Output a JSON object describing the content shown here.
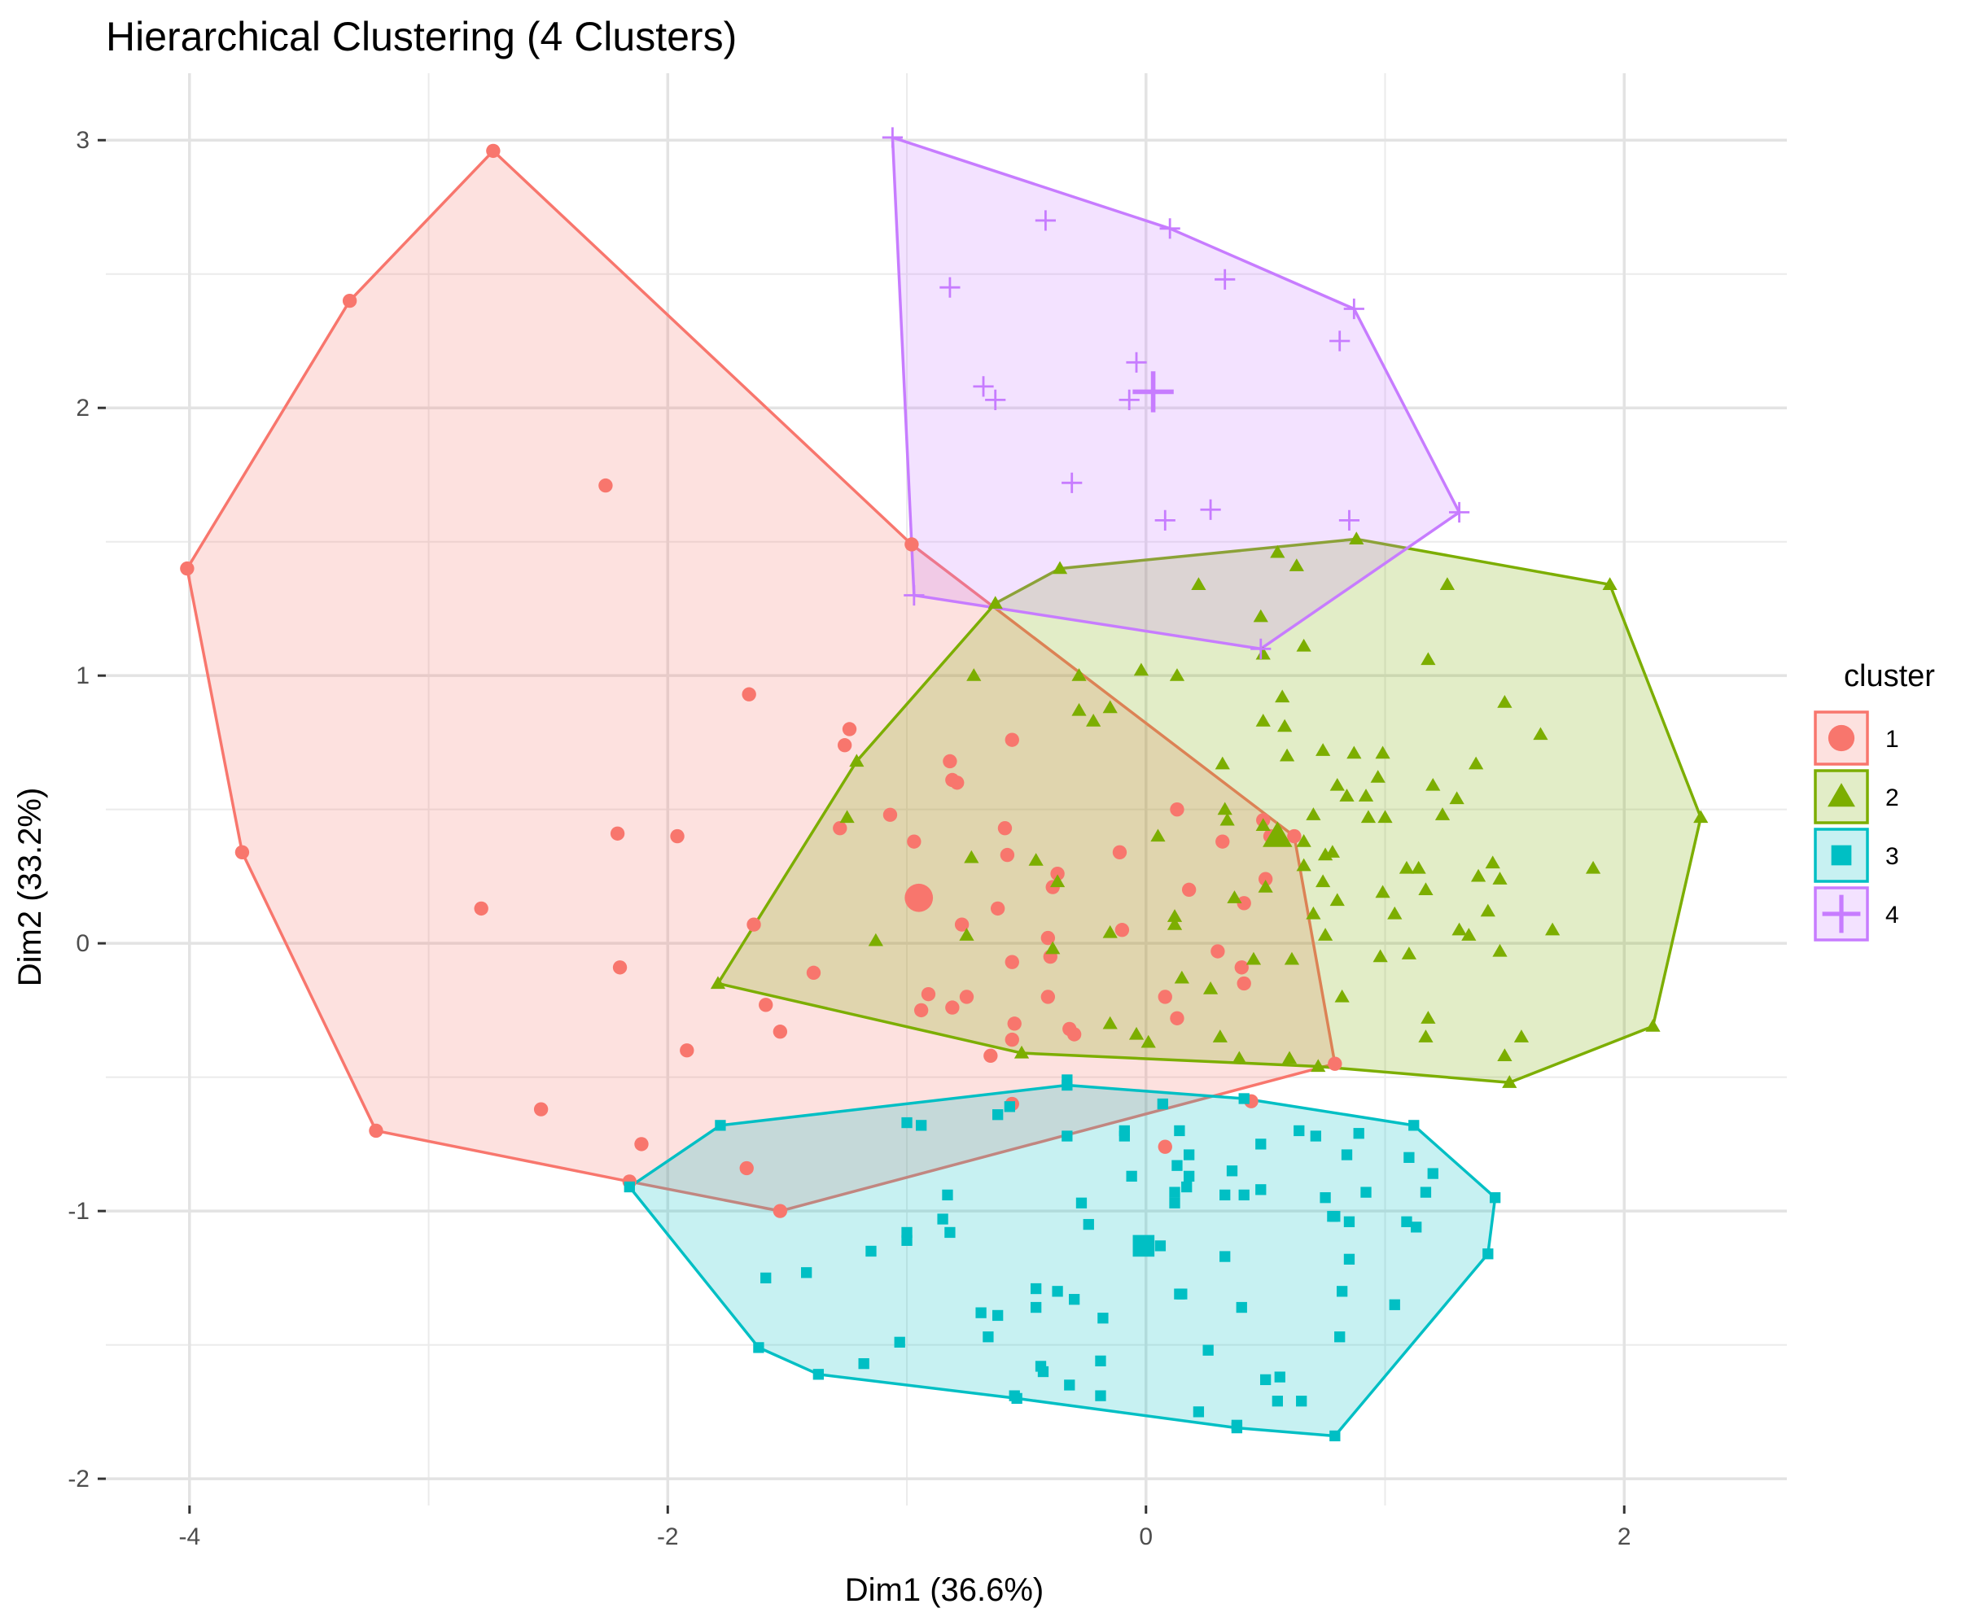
{
  "chart_data": {
    "type": "scatter",
    "title": "Hierarchical Clustering (4 Clusters)",
    "xlabel": "Dim1 (36.6%)",
    "ylabel": "Dim2 (33.2%)",
    "xlim": [
      -4.35,
      2.68
    ],
    "ylim": [
      -2.1,
      3.25
    ],
    "xticks": [
      -4,
      -2,
      0,
      2
    ],
    "xtick_labels": [
      "-4",
      "-2",
      "0",
      "2"
    ],
    "yticks": [
      -2,
      -1,
      0,
      1,
      2,
      3
    ],
    "ytick_labels": [
      "-2",
      "-1",
      "0",
      "1",
      "2",
      "3"
    ],
    "grid": true,
    "legend": {
      "title": "cluster",
      "position": "right"
    },
    "series": [
      {
        "name": "1",
        "shape": "circle",
        "color": "#F8766D",
        "centroid": [
          -0.95,
          0.17
        ],
        "hull": [
          [
            -2.73,
            2.96
          ],
          [
            -3.33,
            2.4
          ],
          [
            -4.01,
            1.4
          ],
          [
            -3.78,
            0.34
          ],
          [
            -3.22,
            -0.7
          ],
          [
            -2.16,
            -0.89
          ],
          [
            -1.53,
            -1.0
          ],
          [
            0.79,
            -0.45
          ],
          [
            0.62,
            0.4
          ],
          [
            -0.98,
            1.49
          ]
        ],
        "points": [
          [
            -2.26,
            1.71
          ],
          [
            -1.66,
            0.93
          ],
          [
            -1.24,
            0.8
          ],
          [
            -1.26,
            0.74
          ],
          [
            -0.56,
            0.76
          ],
          [
            -0.82,
            0.68
          ],
          [
            -0.81,
            0.61
          ],
          [
            -0.79,
            0.6
          ],
          [
            -2.21,
            0.41
          ],
          [
            -1.96,
            0.4
          ],
          [
            -1.07,
            0.48
          ],
          [
            -1.28,
            0.43
          ],
          [
            -0.97,
            0.38
          ],
          [
            -0.59,
            0.43
          ],
          [
            -0.58,
            0.33
          ],
          [
            -0.11,
            0.34
          ],
          [
            0.13,
            0.5
          ],
          [
            0.32,
            0.38
          ],
          [
            0.49,
            0.46
          ],
          [
            0.52,
            0.4
          ],
          [
            0.5,
            0.24
          ],
          [
            -0.37,
            0.26
          ],
          [
            -0.39,
            0.21
          ],
          [
            -0.62,
            0.13
          ],
          [
            -0.77,
            0.07
          ],
          [
            -0.41,
            0.02
          ],
          [
            -0.4,
            -0.05
          ],
          [
            -0.56,
            -0.07
          ],
          [
            -2.78,
            0.13
          ],
          [
            -1.64,
            0.07
          ],
          [
            -2.2,
            -0.09
          ],
          [
            -1.39,
            -0.11
          ],
          [
            -1.59,
            -0.23
          ],
          [
            -0.81,
            -0.24
          ],
          [
            -0.91,
            -0.19
          ],
          [
            -0.75,
            -0.2
          ],
          [
            -0.94,
            -0.25
          ],
          [
            -0.41,
            -0.2
          ],
          [
            -0.55,
            -0.3
          ],
          [
            -0.32,
            -0.32
          ],
          [
            -0.3,
            -0.34
          ],
          [
            -0.56,
            -0.36
          ],
          [
            -0.65,
            -0.42
          ],
          [
            -1.53,
            -0.33
          ],
          [
            -1.92,
            -0.4
          ],
          [
            -0.56,
            -0.6
          ],
          [
            -2.53,
            -0.62
          ],
          [
            -2.11,
            -0.75
          ],
          [
            -1.67,
            -0.84
          ],
          [
            0.44,
            -0.59
          ],
          [
            0.08,
            -0.76
          ],
          [
            0.41,
            0.15
          ],
          [
            0.4,
            -0.09
          ],
          [
            0.41,
            -0.15
          ],
          [
            0.18,
            0.2
          ],
          [
            0.3,
            -0.03
          ],
          [
            -0.1,
            0.05
          ],
          [
            0.08,
            -0.2
          ],
          [
            0.13,
            -0.28
          ]
        ]
      },
      {
        "name": "2",
        "shape": "triangle",
        "color": "#7CAE00",
        "centroid": [
          0.55,
          0.4
        ],
        "hull": [
          [
            0.88,
            1.51
          ],
          [
            1.94,
            1.34
          ],
          [
            2.32,
            0.47
          ],
          [
            2.12,
            -0.31
          ],
          [
            1.52,
            -0.52
          ],
          [
            0.72,
            -0.46
          ],
          [
            -0.52,
            -0.41
          ],
          [
            -1.79,
            -0.15
          ],
          [
            -1.21,
            0.68
          ],
          [
            -0.63,
            1.27
          ],
          [
            -0.36,
            1.4
          ]
        ],
        "points": [
          [
            0.55,
            1.46
          ],
          [
            0.63,
            1.41
          ],
          [
            0.22,
            1.34
          ],
          [
            0.48,
            1.22
          ],
          [
            1.26,
            1.34
          ],
          [
            0.49,
            1.08
          ],
          [
            0.66,
            1.11
          ],
          [
            1.18,
            1.06
          ],
          [
            -0.02,
            1.02
          ],
          [
            0.13,
            1.0
          ],
          [
            -0.28,
            1.0
          ],
          [
            -0.72,
            1.0
          ],
          [
            -0.15,
            0.88
          ],
          [
            -0.28,
            0.87
          ],
          [
            1.5,
            0.9
          ],
          [
            0.57,
            0.92
          ],
          [
            0.49,
            0.83
          ],
          [
            0.58,
            0.81
          ],
          [
            -0.22,
            0.83
          ],
          [
            0.74,
            0.72
          ],
          [
            0.87,
            0.71
          ],
          [
            0.99,
            0.71
          ],
          [
            1.65,
            0.78
          ],
          [
            1.38,
            0.67
          ],
          [
            0.32,
            0.67
          ],
          [
            0.59,
            0.7
          ],
          [
            0.97,
            0.62
          ],
          [
            0.8,
            0.59
          ],
          [
            0.92,
            0.55
          ],
          [
            1.2,
            0.59
          ],
          [
            0.84,
            0.55
          ],
          [
            1.3,
            0.54
          ],
          [
            0.7,
            0.48
          ],
          [
            1.0,
            0.47
          ],
          [
            1.24,
            0.48
          ],
          [
            0.93,
            0.47
          ],
          [
            0.34,
            0.46
          ],
          [
            0.49,
            0.44
          ],
          [
            0.78,
            0.34
          ],
          [
            0.66,
            0.29
          ],
          [
            -1.25,
            0.47
          ],
          [
            -0.73,
            0.32
          ],
          [
            -0.46,
            0.31
          ],
          [
            -0.37,
            0.23
          ],
          [
            0.05,
            0.4
          ],
          [
            0.33,
            0.5
          ],
          [
            0.66,
            0.38
          ],
          [
            0.75,
            0.33
          ],
          [
            1.09,
            0.28
          ],
          [
            1.14,
            0.28
          ],
          [
            1.45,
            0.3
          ],
          [
            1.39,
            0.25
          ],
          [
            1.87,
            0.28
          ],
          [
            1.48,
            0.24
          ],
          [
            0.74,
            0.23
          ],
          [
            0.8,
            0.16
          ],
          [
            0.99,
            0.19
          ],
          [
            1.17,
            0.2
          ],
          [
            1.04,
            0.11
          ],
          [
            0.7,
            0.11
          ],
          [
            0.5,
            0.21
          ],
          [
            0.37,
            0.17
          ],
          [
            1.31,
            0.05
          ],
          [
            1.35,
            0.03
          ],
          [
            1.43,
            0.12
          ],
          [
            1.7,
            0.05
          ],
          [
            1.48,
            -0.03
          ],
          [
            1.1,
            -0.04
          ],
          [
            0.98,
            -0.05
          ],
          [
            0.75,
            0.03
          ],
          [
            -1.13,
            0.01
          ],
          [
            -0.75,
            0.03
          ],
          [
            -0.39,
            -0.02
          ],
          [
            -0.15,
            0.04
          ],
          [
            0.12,
            0.07
          ],
          [
            0.12,
            0.1
          ],
          [
            0.45,
            -0.06
          ],
          [
            0.61,
            -0.06
          ],
          [
            0.82,
            -0.2
          ],
          [
            0.27,
            -0.17
          ],
          [
            0.15,
            -0.13
          ],
          [
            0.31,
            -0.35
          ],
          [
            0.01,
            -0.37
          ],
          [
            -0.15,
            -0.3
          ],
          [
            -0.04,
            -0.34
          ],
          [
            1.18,
            -0.28
          ],
          [
            1.17,
            -0.35
          ],
          [
            1.57,
            -0.35
          ],
          [
            1.5,
            -0.42
          ],
          [
            0.39,
            -0.43
          ],
          [
            0.6,
            -0.43
          ]
        ]
      },
      {
        "name": "3",
        "shape": "square",
        "color": "#00BFC4",
        "centroid": [
          -0.01,
          -1.13
        ],
        "hull": [
          [
            -1.78,
            -0.68
          ],
          [
            -0.33,
            -0.53
          ],
          [
            0.41,
            -0.58
          ],
          [
            1.12,
            -0.68
          ],
          [
            1.46,
            -0.95
          ],
          [
            1.43,
            -1.16
          ],
          [
            0.79,
            -1.84
          ],
          [
            0.38,
            -1.81
          ],
          [
            -0.54,
            -1.7
          ],
          [
            -1.37,
            -1.61
          ],
          [
            -1.62,
            -1.51
          ],
          [
            -2.16,
            -0.91
          ]
        ],
        "points": [
          [
            -1.0,
            -0.67
          ],
          [
            -0.94,
            -0.68
          ],
          [
            -0.33,
            -0.51
          ],
          [
            -0.62,
            -0.64
          ],
          [
            -0.57,
            -0.61
          ],
          [
            0.07,
            -0.6
          ],
          [
            -0.09,
            -0.7
          ],
          [
            0.14,
            -0.7
          ],
          [
            -0.09,
            -0.72
          ],
          [
            -0.33,
            -0.72
          ],
          [
            0.18,
            -0.79
          ],
          [
            0.48,
            -0.75
          ],
          [
            0.64,
            -0.7
          ],
          [
            0.71,
            -0.72
          ],
          [
            0.89,
            -0.71
          ],
          [
            1.1,
            -0.8
          ],
          [
            0.84,
            -0.79
          ],
          [
            1.2,
            -0.86
          ],
          [
            -0.06,
            -0.87
          ],
          [
            0.13,
            -0.83
          ],
          [
            0.18,
            -0.87
          ],
          [
            0.17,
            -0.91
          ],
          [
            0.12,
            -0.93
          ],
          [
            0.36,
            -0.85
          ],
          [
            0.41,
            -0.94
          ],
          [
            0.48,
            -0.92
          ],
          [
            0.33,
            -0.94
          ],
          [
            0.75,
            -0.95
          ],
          [
            1.17,
            -0.93
          ],
          [
            0.92,
            -0.93
          ],
          [
            0.78,
            -1.02
          ],
          [
            0.79,
            -1.02
          ],
          [
            0.85,
            -1.04
          ],
          [
            -0.27,
            -0.97
          ],
          [
            0.12,
            -0.97
          ],
          [
            -0.83,
            -0.94
          ],
          [
            -0.85,
            -1.03
          ],
          [
            -1.0,
            -1.08
          ],
          [
            -1.0,
            -1.11
          ],
          [
            -1.15,
            -1.15
          ],
          [
            -0.82,
            -1.08
          ],
          [
            -0.24,
            -1.05
          ],
          [
            1.13,
            -1.06
          ],
          [
            1.09,
            -1.04
          ],
          [
            -1.59,
            -1.25
          ],
          [
            -1.42,
            -1.23
          ],
          [
            0.01,
            -1.13
          ],
          [
            0.06,
            -1.13
          ],
          [
            0.33,
            -1.17
          ],
          [
            0.85,
            -1.18
          ],
          [
            -0.37,
            -1.3
          ],
          [
            -0.46,
            -1.29
          ],
          [
            -0.3,
            -1.33
          ],
          [
            0.15,
            -1.31
          ],
          [
            0.14,
            -1.31
          ],
          [
            0.4,
            -1.36
          ],
          [
            0.82,
            -1.3
          ],
          [
            1.04,
            -1.35
          ],
          [
            -0.69,
            -1.38
          ],
          [
            -0.62,
            -1.39
          ],
          [
            -0.46,
            -1.36
          ],
          [
            -0.18,
            -1.4
          ],
          [
            -0.66,
            -1.47
          ],
          [
            -1.03,
            -1.49
          ],
          [
            0.81,
            -1.47
          ],
          [
            -1.18,
            -1.57
          ],
          [
            -0.44,
            -1.58
          ],
          [
            -0.43,
            -1.6
          ],
          [
            -0.19,
            -1.56
          ],
          [
            0.26,
            -1.52
          ],
          [
            0.5,
            -1.63
          ],
          [
            0.56,
            -1.62
          ],
          [
            -0.55,
            -1.69
          ],
          [
            -0.32,
            -1.65
          ],
          [
            -0.19,
            -1.69
          ],
          [
            0.55,
            -1.71
          ],
          [
            0.65,
            -1.71
          ],
          [
            0.22,
            -1.75
          ],
          [
            0.38,
            -1.8
          ]
        ]
      },
      {
        "name": "4",
        "shape": "cross",
        "color": "#C77CFF",
        "centroid": [
          0.03,
          2.06
        ],
        "hull": [
          [
            -1.06,
            3.01
          ],
          [
            0.1,
            2.67
          ],
          [
            0.87,
            2.37
          ],
          [
            1.31,
            1.61
          ],
          [
            0.48,
            1.1
          ],
          [
            -0.97,
            1.3
          ]
        ],
        "points": [
          [
            -0.42,
            2.7
          ],
          [
            -0.82,
            2.45
          ],
          [
            0.33,
            2.48
          ],
          [
            0.81,
            2.25
          ],
          [
            -0.04,
            2.17
          ],
          [
            -0.68,
            2.08
          ],
          [
            -0.63,
            2.03
          ],
          [
            -0.07,
            2.03
          ],
          [
            -0.31,
            1.72
          ],
          [
            0.08,
            1.58
          ],
          [
            0.27,
            1.62
          ],
          [
            0.85,
            1.58
          ]
        ]
      }
    ]
  }
}
